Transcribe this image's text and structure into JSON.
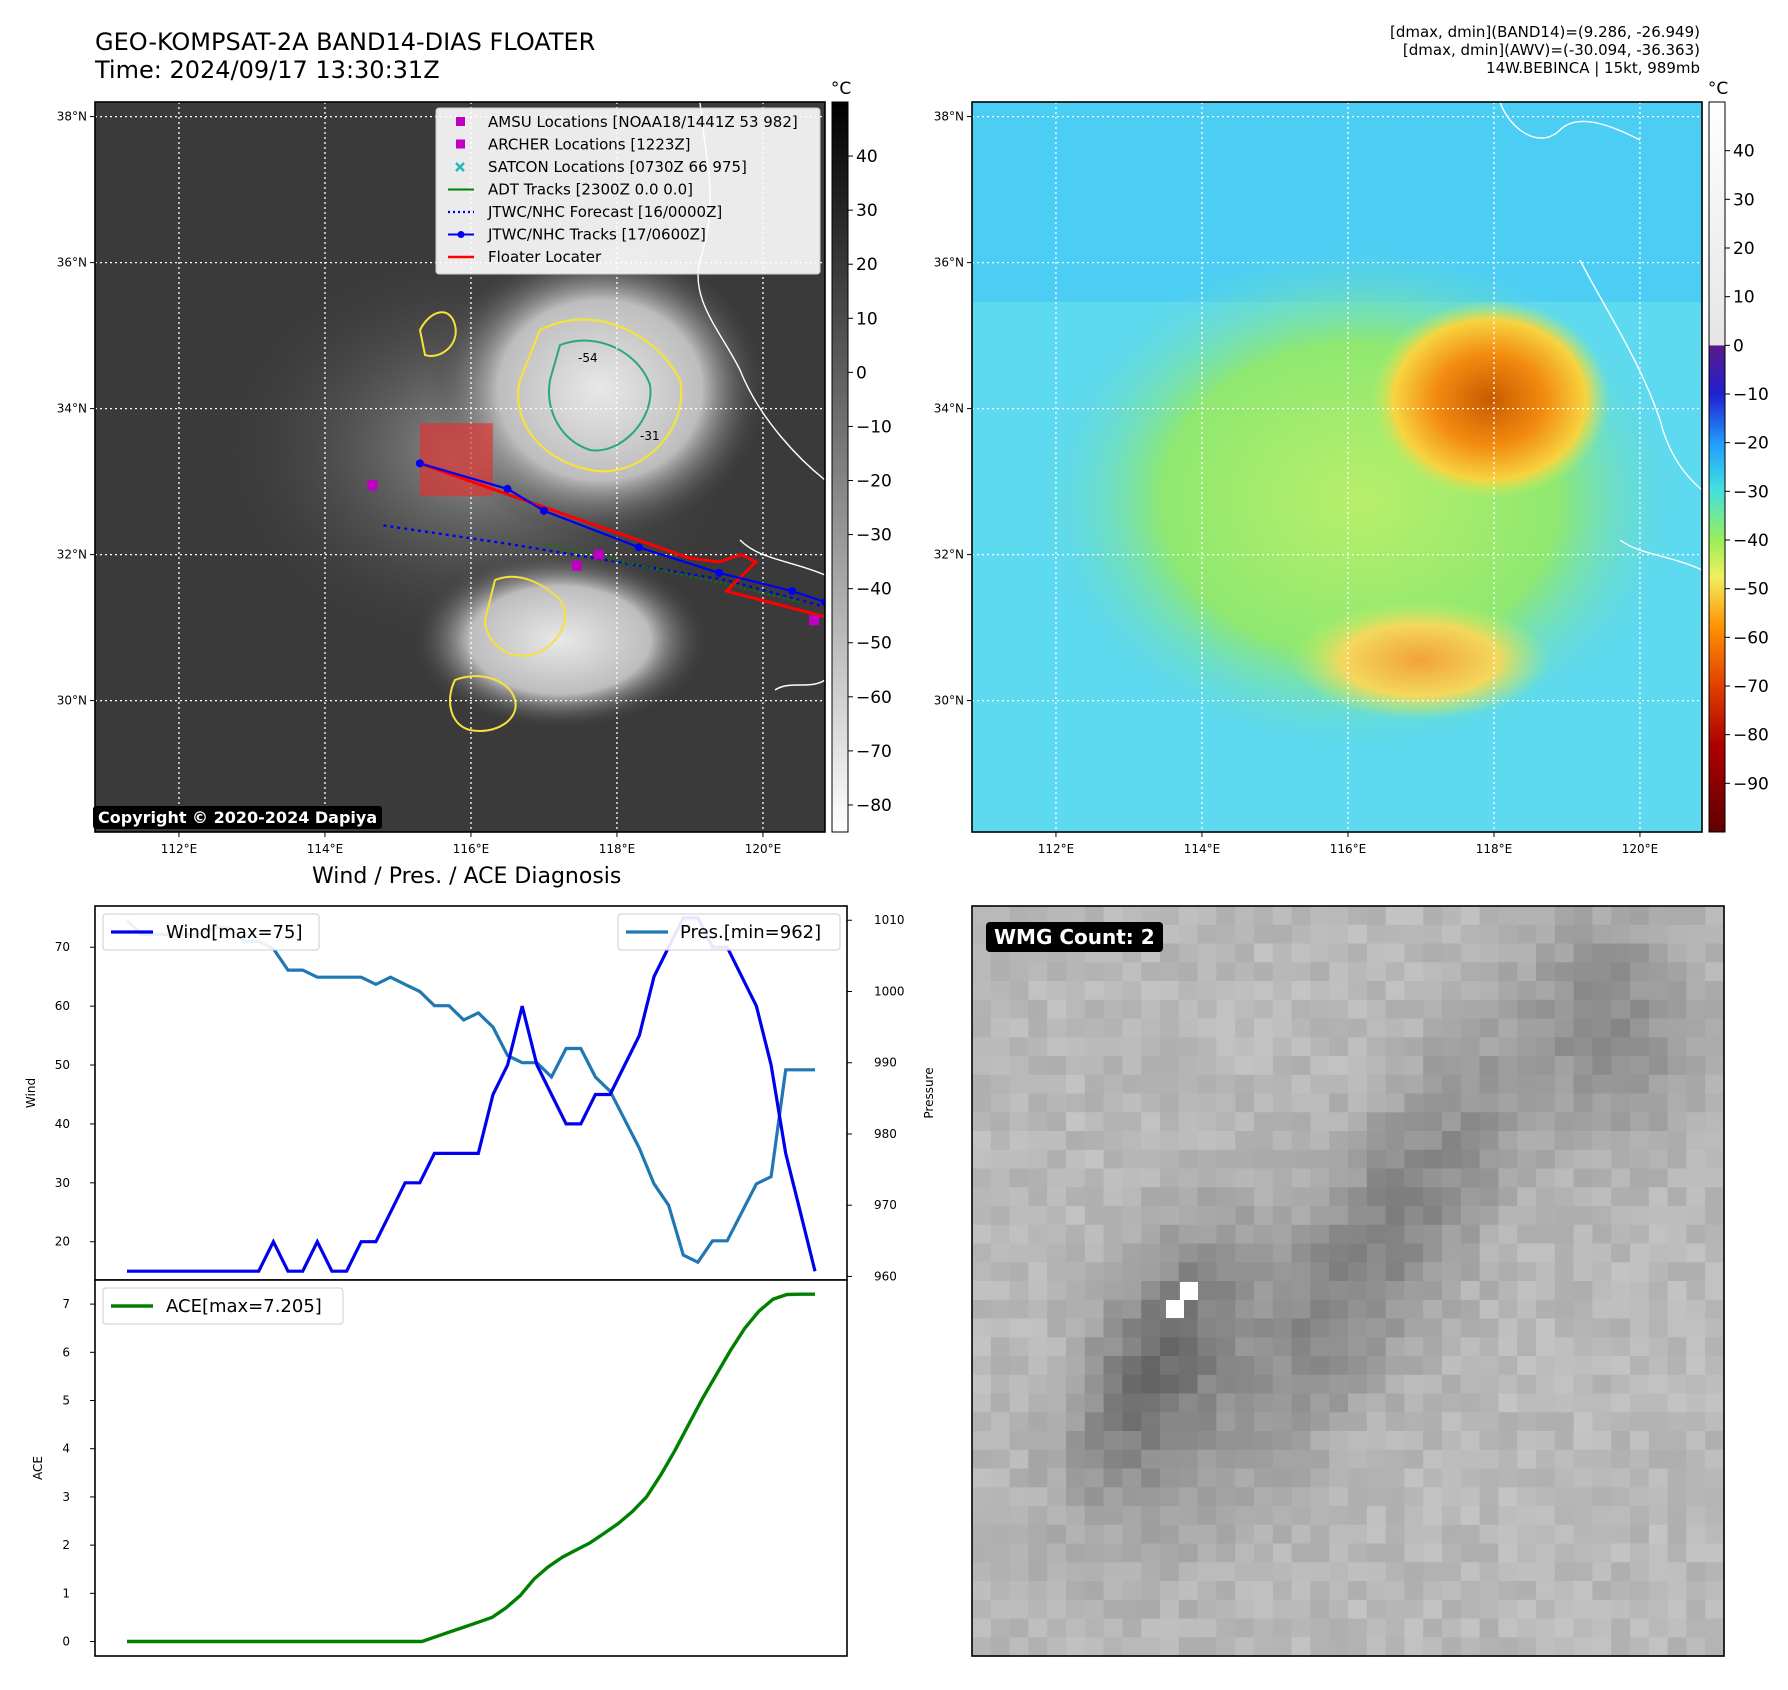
{
  "header": {
    "title_line1": "GEO-KOMPSAT-2A BAND14-DIAS FLOATER",
    "title_line2": "Time: 2024/09/17 13:30:31Z",
    "info_line1": "[dmax, dmin](BAND14)=(9.286, -26.949)",
    "info_line2": "[dmax, dmin](AWV)=(-30.094, -36.363)",
    "info_line3": "14W.BEBINCA | 15kt, 989mb"
  },
  "copyright": "Copyright © 2020-2024 Dapiya",
  "diagnosis_title": "Wind / Pres. / ACE Diagnosis",
  "wmg_label": "WMG Count: 2",
  "colors": {
    "wind": "#0000ee",
    "pressure": "#1f77b4",
    "ace": "#008000",
    "floater": "#ff0000",
    "contour_yellow": "#f5e23a",
    "contour_green": "#2aa87a",
    "marker_magenta": "#c000c0"
  },
  "map": {
    "lon_ticks": [
      "112°E",
      "114°E",
      "116°E",
      "118°E",
      "120°E"
    ],
    "lat_ticks": [
      "38°N",
      "36°N",
      "34°N",
      "32°N",
      "30°N"
    ],
    "lon_values": [
      112,
      114,
      116,
      118,
      120
    ],
    "lat_values": [
      38,
      36,
      34,
      32,
      30
    ],
    "lon_range": [
      110.85,
      120.85
    ],
    "lat_range": [
      28.2,
      38.2
    ],
    "contour_labels": [
      "-54",
      "-31"
    ],
    "legend": [
      {
        "label": "AMSU Locations [NOAA18/1441Z 53 982]",
        "icon": "magenta-square"
      },
      {
        "label": "ARCHER Locations [1223Z]",
        "icon": "magenta-square"
      },
      {
        "label": "SATCON Locations [0730Z 66 975]",
        "icon": "cyan-x"
      },
      {
        "label": "ADT Tracks [2300Z 0.0 0.0]",
        "icon": "green-line"
      },
      {
        "label": "JTWC/NHC Forecast [16/0000Z]",
        "icon": "blue-dotted-line"
      },
      {
        "label": "JTWC/NHC Tracks [17/0600Z]",
        "icon": "blue-line-dot"
      },
      {
        "label": "Floater Locater",
        "icon": "red-line"
      }
    ],
    "jtwc_track": [
      [
        115.3,
        33.25
      ],
      [
        116.5,
        32.9
      ],
      [
        117.0,
        32.6
      ],
      [
        118.3,
        32.1
      ],
      [
        119.4,
        31.75
      ],
      [
        120.4,
        31.5
      ],
      [
        120.85,
        31.35
      ]
    ],
    "jtwc_forecast": [
      [
        114.8,
        32.4
      ],
      [
        116.5,
        32.15
      ],
      [
        118.0,
        31.9
      ],
      [
        119.5,
        31.65
      ],
      [
        120.8,
        31.3
      ]
    ],
    "adt_track": [
      [
        117.0,
        32.15
      ],
      [
        118.3,
        31.85
      ],
      [
        119.5,
        31.6
      ],
      [
        120.5,
        31.35
      ]
    ],
    "floater_track": [
      [
        115.3,
        33.25
      ],
      [
        117.0,
        32.65
      ],
      [
        118.0,
        32.3
      ],
      [
        119.0,
        31.95
      ],
      [
        119.4,
        31.9
      ],
      [
        119.7,
        32.0
      ],
      [
        119.9,
        31.9
      ],
      [
        119.5,
        31.5
      ],
      [
        120.85,
        31.15
      ]
    ],
    "amsu_point": [
      114.65,
      32.95
    ],
    "archer_points": [
      [
        117.45,
        31.85
      ],
      [
        117.75,
        32.0
      ],
      [
        120.7,
        31.1
      ]
    ],
    "floater_box": [
      115.3,
      32.8,
      116.3,
      33.8
    ]
  },
  "colorbar_ir": {
    "unit": "°C",
    "ticks": [
      "40",
      "30",
      "20",
      "10",
      "0",
      "−10",
      "−20",
      "−30",
      "−40",
      "−50",
      "−60",
      "−70",
      "−80"
    ],
    "tick_values": [
      40,
      30,
      20,
      10,
      0,
      -10,
      -20,
      -30,
      -40,
      -50,
      -60,
      -70,
      -80
    ],
    "range": [
      -85,
      50
    ]
  },
  "colorbar_wv": {
    "unit": "°C",
    "ticks": [
      "40",
      "30",
      "20",
      "10",
      "0",
      "−10",
      "−20",
      "−30",
      "−40",
      "−50",
      "−60",
      "−70",
      "−80",
      "−90"
    ],
    "tick_values": [
      40,
      30,
      20,
      10,
      0,
      -10,
      -20,
      -30,
      -40,
      -50,
      -60,
      -70,
      -80,
      -90
    ],
    "range": [
      -100,
      50
    ]
  },
  "chart_data": [
    {
      "type": "line",
      "ylabel": "Wind",
      "y2label": "Pressure",
      "ylim": [
        13.5,
        77
      ],
      "y2lim": [
        959.5,
        1012
      ],
      "yticks": [
        20,
        30,
        40,
        50,
        60,
        70
      ],
      "y2ticks": [
        960,
        970,
        980,
        990,
        1000,
        1010
      ],
      "series": [
        {
          "name": "Wind[max=75]",
          "axis": "left",
          "values": [
            15,
            15,
            15,
            15,
            15,
            15,
            15,
            15,
            15,
            15,
            20,
            15,
            15,
            20,
            15,
            15,
            20,
            20,
            25,
            30,
            30,
            35,
            35,
            35,
            35,
            45,
            50,
            60,
            50,
            45,
            40,
            40,
            45,
            45,
            50,
            55,
            65,
            70,
            75,
            75,
            70,
            70,
            65,
            60,
            50,
            35,
            25,
            15
          ]
        },
        {
          "name": "Pres.[min=962]",
          "axis": "right",
          "values": [
            1010,
            1008,
            1008,
            1008,
            1008,
            1008,
            1009,
            1009,
            1007,
            1007,
            1006,
            1003,
            1003,
            1002,
            1002,
            1002,
            1002,
            1001,
            1002,
            1001,
            1000,
            998,
            998,
            996,
            997,
            995,
            991,
            990,
            990,
            988,
            992,
            992,
            988,
            986,
            982,
            978,
            973,
            970,
            963,
            962,
            965,
            965,
            969,
            973,
            974,
            989,
            989,
            989
          ]
        }
      ]
    },
    {
      "type": "area",
      "ylabel": "ACE",
      "ylim": [
        -0.3,
        7.5
      ],
      "yticks": [
        0,
        1,
        2,
        3,
        4,
        5,
        6,
        7
      ],
      "series": [
        {
          "name": "ACE[max=7.205]",
          "values": [
            0,
            0,
            0,
            0,
            0,
            0,
            0,
            0,
            0,
            0,
            0,
            0,
            0,
            0,
            0,
            0,
            0,
            0,
            0,
            0,
            0,
            0,
            0.1,
            0.2,
            0.3,
            0.4,
            0.5,
            0.7,
            0.95,
            1.3,
            1.55,
            1.75,
            1.9,
            2.05,
            2.25,
            2.45,
            2.7,
            3.0,
            3.45,
            3.95,
            4.5,
            5.05,
            5.55,
            6.05,
            6.5,
            6.85,
            7.1,
            7.2,
            7.205,
            7.205
          ]
        }
      ]
    }
  ]
}
